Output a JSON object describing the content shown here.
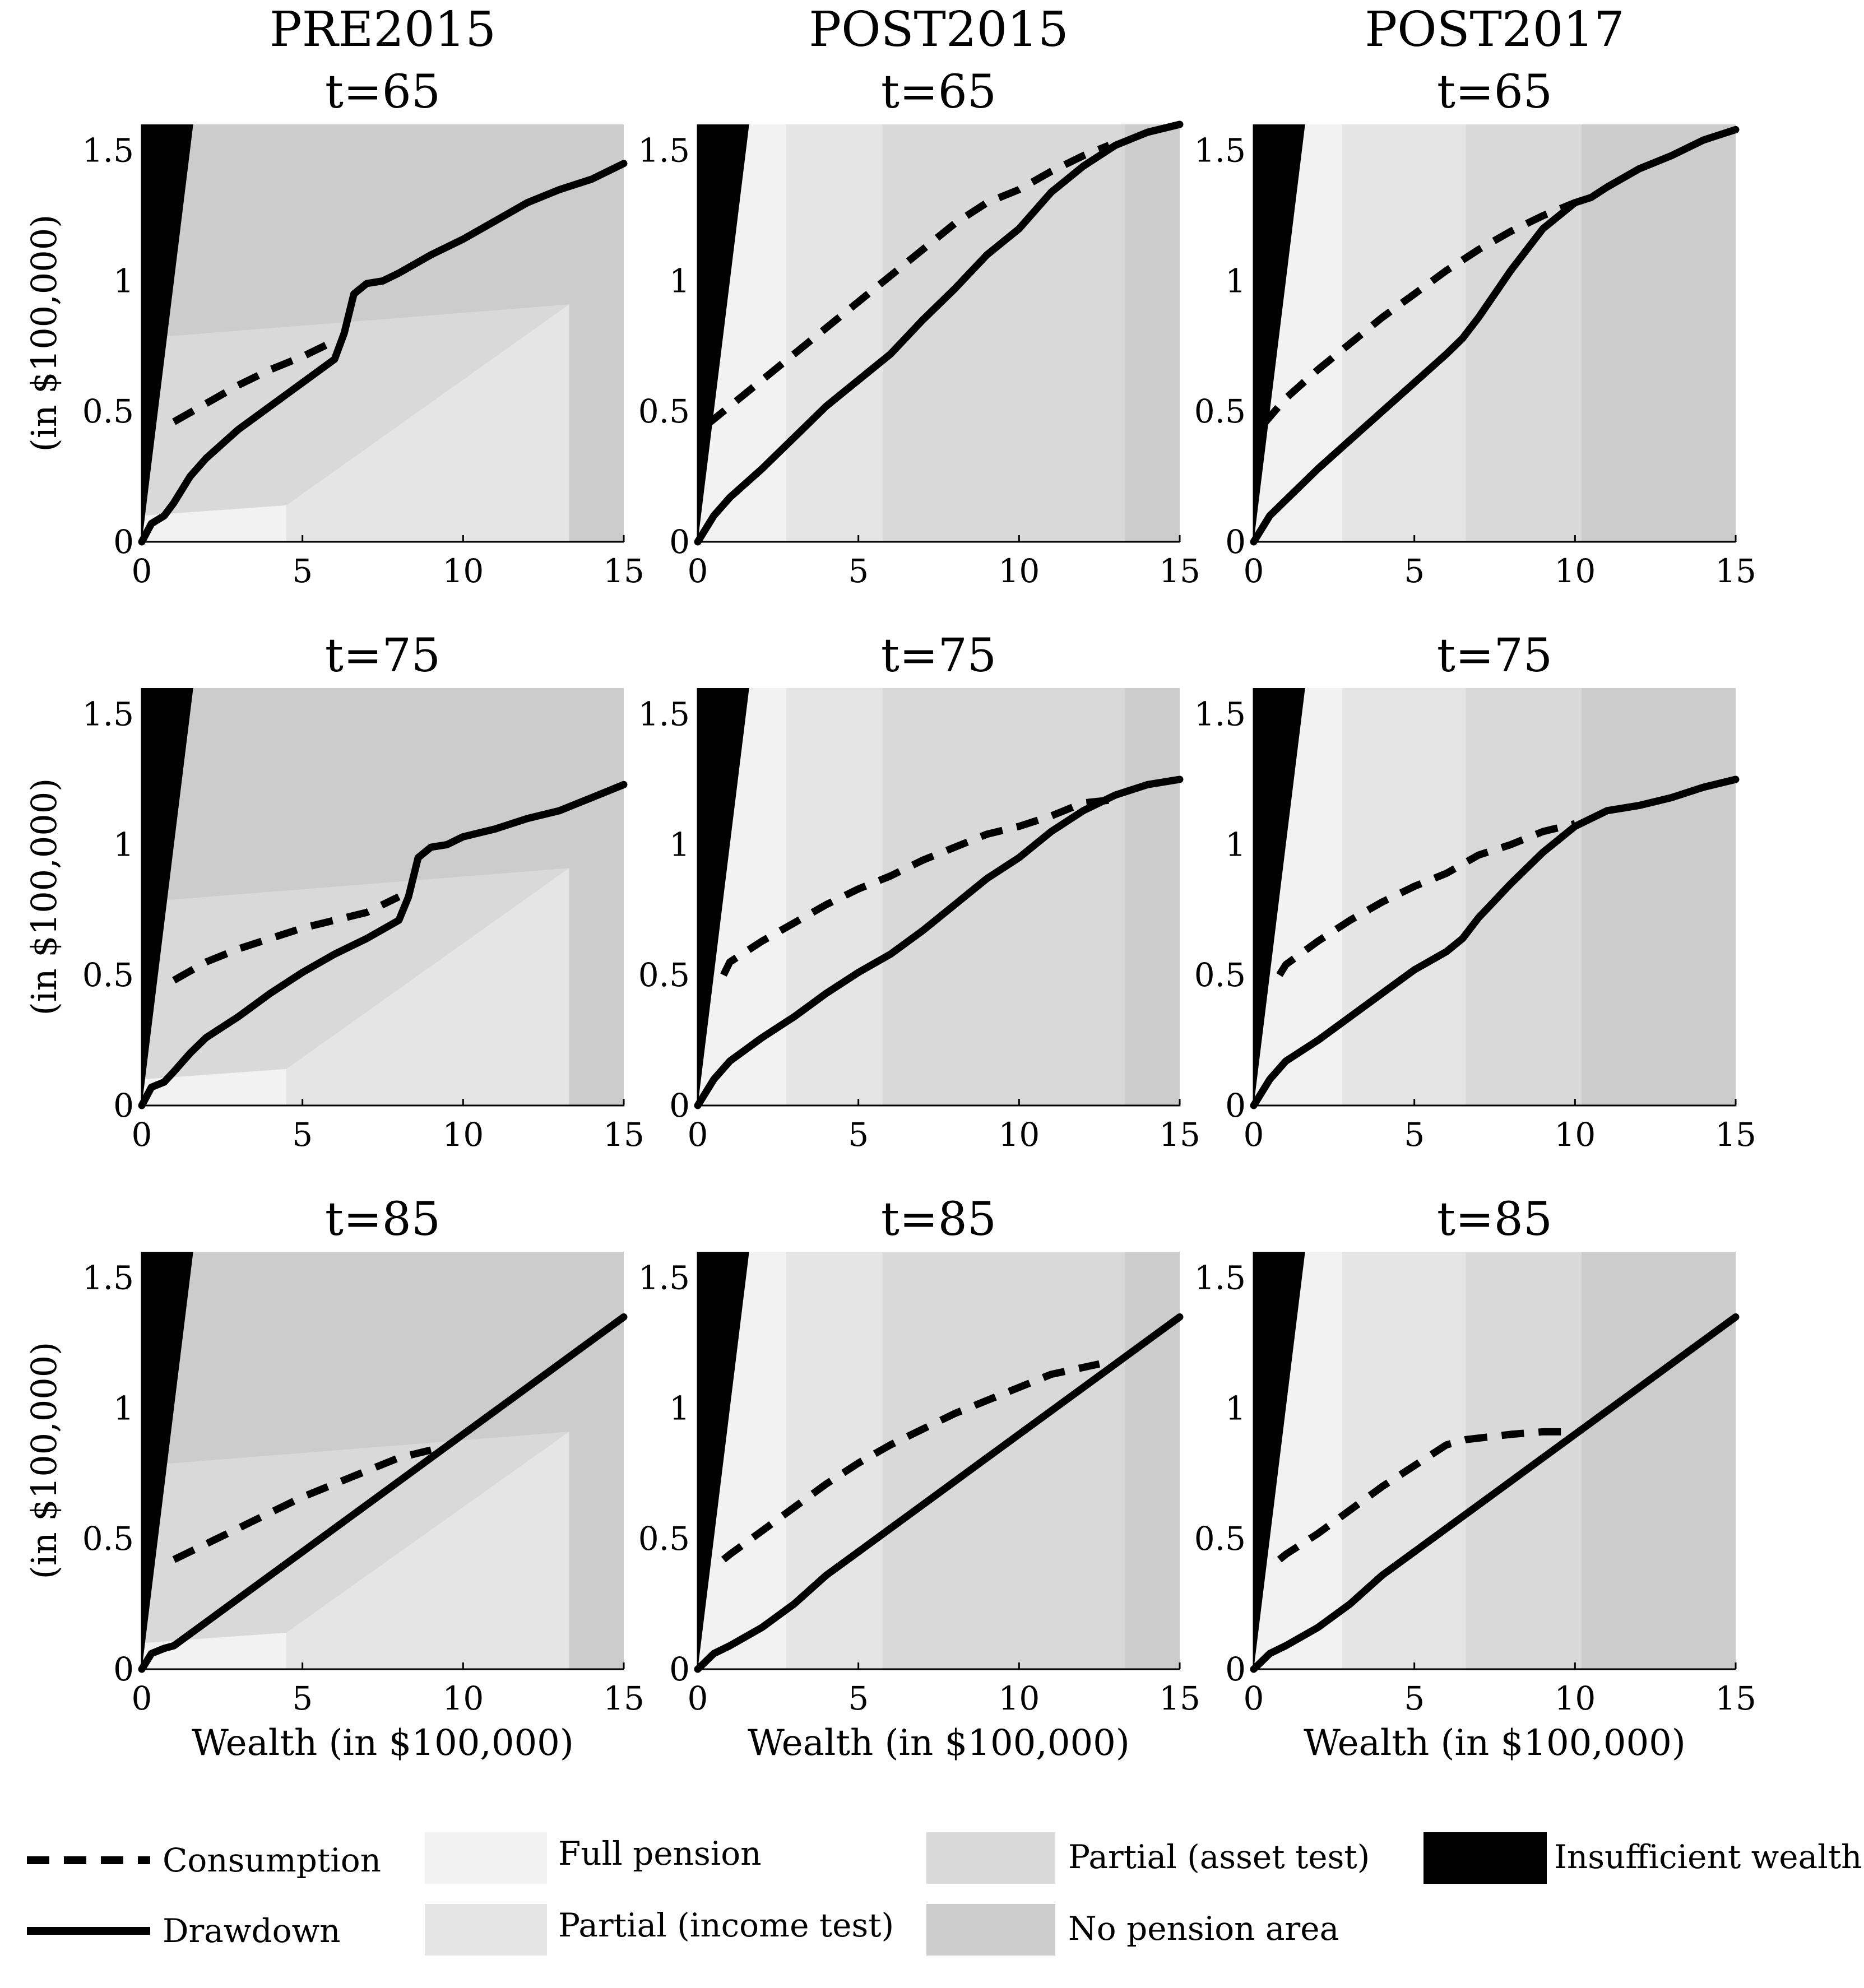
{
  "chart_data": {
    "type": "line",
    "column_titles": [
      "PRE2015",
      "POST2015",
      "POST2017"
    ],
    "row_titles": [
      "t=65",
      "t=75",
      "t=85"
    ],
    "xlabel": "Wealth (in $100,000)",
    "ylabel": "(in $100,000)",
    "xlim": [
      0,
      15
    ],
    "ylim": [
      0,
      1.6
    ],
    "x_ticks": [
      "0",
      "5",
      "10",
      "15"
    ],
    "y_ticks": [
      "0",
      "0.5",
      "1",
      "1.5"
    ],
    "region_colors": {
      "full": "#f2f2f2",
      "income": "#e5e5e5",
      "asset": "#d9d9d9",
      "nopension": "#cccccc",
      "insufficient": "#000000"
    },
    "legend": {
      "lines": [
        {
          "label": "Consumption",
          "style": "dashed"
        },
        {
          "label": "Drawdown",
          "style": "solid"
        }
      ],
      "areas": [
        {
          "label": "Full pension",
          "key": "full"
        },
        {
          "label": "Partial (income test)",
          "key": "income"
        },
        {
          "label": "Partial (asset test)",
          "key": "asset"
        },
        {
          "label": "No pension area",
          "key": "nopension"
        },
        {
          "label": "Insufficient wealth",
          "key": "insufficient"
        }
      ]
    },
    "panels": [
      {
        "row": 0,
        "col": 0,
        "scheme": "pre2015",
        "consumption": [
          [
            1,
            0.46
          ],
          [
            2,
            0.53
          ],
          [
            3,
            0.6
          ],
          [
            4,
            0.66
          ],
          [
            5,
            0.71
          ],
          [
            6,
            0.77
          ]
        ],
        "drawdown": [
          [
            0,
            0
          ],
          [
            0.3,
            0.07
          ],
          [
            0.7,
            0.1
          ],
          [
            1,
            0.15
          ],
          [
            1.5,
            0.25
          ],
          [
            2,
            0.32
          ],
          [
            3,
            0.43
          ],
          [
            4,
            0.52
          ],
          [
            5,
            0.61
          ],
          [
            6,
            0.7
          ],
          [
            6.3,
            0.8
          ],
          [
            6.6,
            0.95
          ],
          [
            7,
            0.99
          ],
          [
            7.5,
            1.0
          ],
          [
            8,
            1.03
          ],
          [
            9,
            1.1
          ],
          [
            10,
            1.16
          ],
          [
            11,
            1.23
          ],
          [
            12,
            1.3
          ],
          [
            13,
            1.35
          ],
          [
            14,
            1.39
          ],
          [
            15,
            1.45
          ]
        ]
      },
      {
        "row": 0,
        "col": 1,
        "scheme": "post2015",
        "consumption": [
          [
            0.3,
            0.45
          ],
          [
            1,
            0.52
          ],
          [
            2,
            0.62
          ],
          [
            3,
            0.72
          ],
          [
            4,
            0.82
          ],
          [
            5,
            0.92
          ],
          [
            6,
            1.02
          ],
          [
            7,
            1.12
          ],
          [
            8,
            1.22
          ],
          [
            9,
            1.3
          ],
          [
            10,
            1.35
          ],
          [
            11,
            1.42
          ],
          [
            12,
            1.48
          ],
          [
            12.8,
            1.52
          ]
        ],
        "drawdown": [
          [
            0,
            0
          ],
          [
            0.5,
            0.1
          ],
          [
            1,
            0.17
          ],
          [
            2,
            0.28
          ],
          [
            3,
            0.4
          ],
          [
            4,
            0.52
          ],
          [
            5,
            0.62
          ],
          [
            6,
            0.72
          ],
          [
            7,
            0.85
          ],
          [
            8,
            0.97
          ],
          [
            9,
            1.1
          ],
          [
            10,
            1.2
          ],
          [
            11,
            1.34
          ],
          [
            12,
            1.44
          ],
          [
            13,
            1.52
          ],
          [
            14,
            1.57
          ],
          [
            15,
            1.6
          ]
        ]
      },
      {
        "row": 0,
        "col": 2,
        "scheme": "post2017",
        "consumption": [
          [
            0.3,
            0.45
          ],
          [
            1,
            0.55
          ],
          [
            2,
            0.66
          ],
          [
            3,
            0.76
          ],
          [
            4,
            0.86
          ],
          [
            5,
            0.95
          ],
          [
            6,
            1.04
          ],
          [
            7,
            1.12
          ],
          [
            8,
            1.19
          ],
          [
            9,
            1.25
          ],
          [
            10,
            1.3
          ]
        ],
        "drawdown": [
          [
            0,
            0
          ],
          [
            0.5,
            0.1
          ],
          [
            1,
            0.16
          ],
          [
            2,
            0.28
          ],
          [
            3,
            0.39
          ],
          [
            4,
            0.5
          ],
          [
            5,
            0.61
          ],
          [
            6,
            0.72
          ],
          [
            6.5,
            0.78
          ],
          [
            7,
            0.86
          ],
          [
            8,
            1.04
          ],
          [
            9,
            1.2
          ],
          [
            10,
            1.3
          ],
          [
            10.5,
            1.32
          ],
          [
            11,
            1.36
          ],
          [
            12,
            1.43
          ],
          [
            13,
            1.48
          ],
          [
            14,
            1.54
          ],
          [
            15,
            1.58
          ]
        ]
      },
      {
        "row": 1,
        "col": 0,
        "scheme": "pre2015",
        "consumption": [
          [
            1,
            0.48
          ],
          [
            2,
            0.55
          ],
          [
            3,
            0.6
          ],
          [
            4,
            0.64
          ],
          [
            5,
            0.68
          ],
          [
            6,
            0.71
          ],
          [
            7,
            0.74
          ],
          [
            8,
            0.8
          ]
        ],
        "drawdown": [
          [
            0,
            0
          ],
          [
            0.3,
            0.07
          ],
          [
            0.7,
            0.09
          ],
          [
            1,
            0.13
          ],
          [
            1.5,
            0.2
          ],
          [
            2,
            0.26
          ],
          [
            3,
            0.34
          ],
          [
            4,
            0.43
          ],
          [
            5,
            0.51
          ],
          [
            6,
            0.58
          ],
          [
            7,
            0.64
          ],
          [
            8,
            0.71
          ],
          [
            8.3,
            0.8
          ],
          [
            8.6,
            0.95
          ],
          [
            9,
            0.99
          ],
          [
            9.5,
            1.0
          ],
          [
            10,
            1.03
          ],
          [
            11,
            1.06
          ],
          [
            12,
            1.1
          ],
          [
            13,
            1.13
          ],
          [
            14,
            1.18
          ],
          [
            15,
            1.23
          ]
        ]
      },
      {
        "row": 1,
        "col": 1,
        "scheme": "post2015",
        "consumption": [
          [
            0.8,
            0.5
          ],
          [
            1,
            0.55
          ],
          [
            2,
            0.63
          ],
          [
            3,
            0.7
          ],
          [
            4,
            0.77
          ],
          [
            5,
            0.83
          ],
          [
            6,
            0.88
          ],
          [
            7,
            0.94
          ],
          [
            8,
            0.99
          ],
          [
            9,
            1.04
          ],
          [
            10,
            1.07
          ],
          [
            11,
            1.11
          ],
          [
            12,
            1.16
          ],
          [
            12.8,
            1.17
          ]
        ],
        "drawdown": [
          [
            0,
            0
          ],
          [
            0.5,
            0.1
          ],
          [
            1,
            0.17
          ],
          [
            2,
            0.26
          ],
          [
            3,
            0.34
          ],
          [
            4,
            0.43
          ],
          [
            5,
            0.51
          ],
          [
            6,
            0.58
          ],
          [
            7,
            0.67
          ],
          [
            8,
            0.77
          ],
          [
            9,
            0.87
          ],
          [
            10,
            0.95
          ],
          [
            11,
            1.05
          ],
          [
            12,
            1.13
          ],
          [
            13,
            1.19
          ],
          [
            14,
            1.23
          ],
          [
            15,
            1.25
          ]
        ]
      },
      {
        "row": 1,
        "col": 2,
        "scheme": "post2017",
        "consumption": [
          [
            0.8,
            0.5
          ],
          [
            1,
            0.54
          ],
          [
            2,
            0.63
          ],
          [
            3,
            0.71
          ],
          [
            4,
            0.78
          ],
          [
            5,
            0.84
          ],
          [
            6,
            0.89
          ],
          [
            7,
            0.96
          ],
          [
            8,
            1.0
          ],
          [
            9,
            1.05
          ],
          [
            10,
            1.08
          ]
        ],
        "drawdown": [
          [
            0,
            0
          ],
          [
            0.5,
            0.1
          ],
          [
            1,
            0.17
          ],
          [
            2,
            0.25
          ],
          [
            3,
            0.34
          ],
          [
            4,
            0.43
          ],
          [
            5,
            0.52
          ],
          [
            6,
            0.59
          ],
          [
            6.5,
            0.64
          ],
          [
            7,
            0.72
          ],
          [
            8,
            0.85
          ],
          [
            9,
            0.97
          ],
          [
            10,
            1.07
          ],
          [
            11,
            1.13
          ],
          [
            12,
            1.15
          ],
          [
            13,
            1.18
          ],
          [
            14,
            1.22
          ],
          [
            15,
            1.25
          ]
        ]
      },
      {
        "row": 2,
        "col": 0,
        "scheme": "pre2015",
        "consumption": [
          [
            1,
            0.42
          ],
          [
            2,
            0.48
          ],
          [
            3,
            0.54
          ],
          [
            4,
            0.6
          ],
          [
            5,
            0.66
          ],
          [
            6,
            0.71
          ],
          [
            7,
            0.76
          ],
          [
            8,
            0.81
          ],
          [
            9,
            0.84
          ]
        ],
        "drawdown": [
          [
            0,
            0
          ],
          [
            0.3,
            0.06
          ],
          [
            0.7,
            0.08
          ],
          [
            1,
            0.09
          ],
          [
            2,
            0.18
          ],
          [
            3,
            0.27
          ],
          [
            4,
            0.36
          ],
          [
            5,
            0.45
          ],
          [
            6,
            0.54
          ],
          [
            7,
            0.63
          ],
          [
            8,
            0.72
          ],
          [
            9,
            0.81
          ],
          [
            10,
            0.9
          ],
          [
            11,
            0.99
          ],
          [
            12,
            1.08
          ],
          [
            13,
            1.17
          ],
          [
            14,
            1.26
          ],
          [
            15,
            1.35
          ]
        ]
      },
      {
        "row": 2,
        "col": 1,
        "scheme": "post2015",
        "consumption": [
          [
            0.8,
            0.42
          ],
          [
            1,
            0.44
          ],
          [
            2,
            0.53
          ],
          [
            3,
            0.62
          ],
          [
            4,
            0.71
          ],
          [
            5,
            0.79
          ],
          [
            6,
            0.86
          ],
          [
            7,
            0.92
          ],
          [
            8,
            0.98
          ],
          [
            9,
            1.03
          ],
          [
            10,
            1.08
          ],
          [
            11,
            1.13
          ],
          [
            12.5,
            1.17
          ]
        ],
        "drawdown": [
          [
            0,
            0
          ],
          [
            0.5,
            0.06
          ],
          [
            1,
            0.09
          ],
          [
            2,
            0.16
          ],
          [
            3,
            0.25
          ],
          [
            4,
            0.36
          ],
          [
            5,
            0.45
          ],
          [
            6,
            0.54
          ],
          [
            7,
            0.63
          ],
          [
            8,
            0.72
          ],
          [
            9,
            0.81
          ],
          [
            10,
            0.9
          ],
          [
            11,
            0.99
          ],
          [
            12,
            1.08
          ],
          [
            13,
            1.17
          ],
          [
            14,
            1.26
          ],
          [
            15,
            1.35
          ]
        ]
      },
      {
        "row": 2,
        "col": 2,
        "scheme": "post2017",
        "consumption": [
          [
            0.8,
            0.42
          ],
          [
            1,
            0.44
          ],
          [
            2,
            0.52
          ],
          [
            3,
            0.61
          ],
          [
            4,
            0.7
          ],
          [
            5,
            0.78
          ],
          [
            6,
            0.86
          ],
          [
            6.6,
            0.88
          ],
          [
            8,
            0.9
          ],
          [
            9,
            0.91
          ],
          [
            10,
            0.91
          ]
        ],
        "drawdown": [
          [
            0,
            0
          ],
          [
            0.5,
            0.06
          ],
          [
            1,
            0.09
          ],
          [
            2,
            0.16
          ],
          [
            3,
            0.25
          ],
          [
            4,
            0.36
          ],
          [
            5,
            0.45
          ],
          [
            6,
            0.54
          ],
          [
            7,
            0.63
          ],
          [
            8,
            0.72
          ],
          [
            9,
            0.81
          ],
          [
            10,
            0.9
          ],
          [
            11,
            0.99
          ],
          [
            12,
            1.08
          ],
          [
            13,
            1.17
          ],
          [
            14,
            1.26
          ],
          [
            15,
            1.35
          ]
        ]
      }
    ]
  }
}
